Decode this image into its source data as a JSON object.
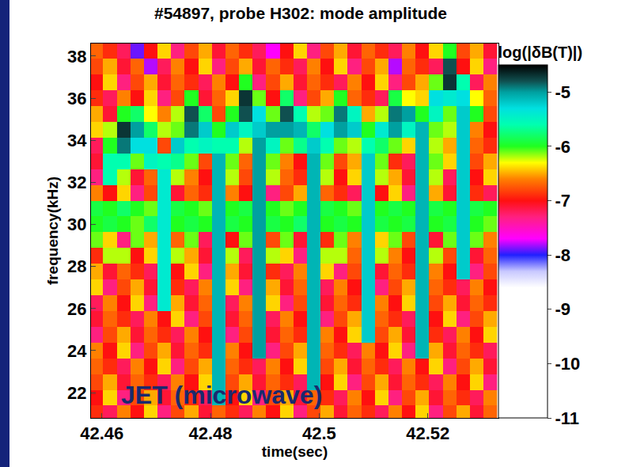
{
  "chart_data": {
    "type": "heatmap",
    "title": "#54897, probe H302: mode amplitude",
    "x_label": "time(sec)",
    "y_label": "frequency(kHz)",
    "colorbar_title": "log(|δB(T)|)",
    "annotations": [
      "JET (microwave)"
    ],
    "xlim": [
      42.458,
      42.533
    ],
    "xticks": [
      42.46,
      42.48,
      42.5,
      42.52
    ],
    "ylim": [
      20.8,
      38.6
    ],
    "yticks": [
      22,
      24,
      26,
      28,
      30,
      32,
      34,
      36,
      38
    ],
    "zlim": [
      -11,
      -4.5
    ],
    "zticks": [
      -5,
      -6,
      -7,
      -8,
      -9,
      -10,
      -11
    ],
    "x": [
      42.459,
      42.4615,
      42.464,
      42.4665,
      42.469,
      42.4715,
      42.474,
      42.4765,
      42.479,
      42.4815,
      42.484,
      42.4865,
      42.489,
      42.4915,
      42.494,
      42.4965,
      42.499,
      42.5015,
      42.504,
      42.5065,
      42.509,
      42.5115,
      42.514,
      42.5165,
      42.519,
      42.5215,
      42.524,
      42.5265,
      42.529,
      42.5315
    ],
    "y": [
      21,
      21.75,
      22.5,
      23.25,
      24,
      24.75,
      25.5,
      26.25,
      27,
      27.75,
      28.5,
      29.25,
      30,
      30.75,
      31.5,
      32.25,
      33,
      33.75,
      34.5,
      35.25,
      36,
      36.75,
      37.5,
      38.25
    ],
    "z": [
      [
        -6.9,
        -7.2,
        -6.6,
        -7.0,
        -6.4,
        -7.3,
        -6.8,
        -6.5,
        -7.1,
        -6.7,
        -6.9,
        -7.2,
        -6.6,
        -7.0,
        -6.4,
        -7.3,
        -6.8,
        -6.5,
        -7.1,
        -6.7,
        -6.9,
        -7.2,
        -6.6,
        -7.0,
        -6.4,
        -7.3,
        -6.8,
        -6.5,
        -7.1,
        -6.7
      ],
      [
        -7.0,
        -6.4,
        -7.3,
        -6.8,
        -6.5,
        -7.1,
        -6.7,
        -6.9,
        -7.2,
        -5.1,
        -7.0,
        -6.4,
        -7.3,
        -6.8,
        -6.5,
        -7.1,
        -6.7,
        -6.9,
        -7.2,
        -6.6,
        -7.0,
        -6.4,
        -7.3,
        -6.8,
        -6.5,
        -7.1,
        -6.7,
        -6.9,
        -7.2,
        -6.6
      ],
      [
        -6.8,
        -6.5,
        -7.1,
        -6.7,
        -6.9,
        -7.2,
        -6.6,
        -7.0,
        -6.4,
        -5.1,
        -6.8,
        -6.5,
        -7.1,
        -6.7,
        -6.9,
        -7.2,
        -5.1,
        -7.0,
        -6.4,
        -7.3,
        -6.8,
        -6.5,
        -7.1,
        -6.7,
        -6.9,
        -7.2,
        -6.6,
        -7.0,
        -6.4,
        -7.3
      ],
      [
        -6.7,
        -6.9,
        -7.2,
        -6.6,
        -7.0,
        -6.4,
        -7.3,
        -6.8,
        -6.5,
        -5.1,
        -6.7,
        -6.9,
        -7.2,
        -6.6,
        -7.0,
        -6.4,
        -5.1,
        -6.8,
        -6.5,
        -7.1,
        -6.7,
        -6.9,
        -7.2,
        -6.6,
        -7.0,
        -6.4,
        -7.3,
        -6.8,
        -6.5,
        -7.1
      ],
      [
        -6.6,
        -7.0,
        -6.4,
        -7.3,
        -6.8,
        -6.5,
        -7.1,
        -6.7,
        -6.9,
        -5.1,
        -6.6,
        -7.0,
        -5.0,
        -7.3,
        -6.8,
        -6.5,
        -5.1,
        -6.7,
        -6.9,
        -7.2,
        -6.6,
        -7.0,
        -6.4,
        -7.3,
        -5.1,
        -6.5,
        -7.1,
        -6.7,
        -6.9,
        -7.2
      ],
      [
        -7.3,
        -6.8,
        -6.5,
        -7.1,
        -6.7,
        -6.9,
        -7.2,
        -6.6,
        -7.0,
        -5.1,
        -7.3,
        -6.8,
        -5.0,
        -7.1,
        -6.7,
        -6.9,
        -5.1,
        -6.6,
        -7.0,
        -6.4,
        -5.2,
        -6.8,
        -6.5,
        -7.1,
        -5.1,
        -6.9,
        -7.2,
        -6.6,
        -7.0,
        -6.4
      ],
      [
        -7.1,
        -6.7,
        -6.9,
        -7.2,
        -6.6,
        -7.0,
        -6.4,
        -7.3,
        -6.8,
        -5.1,
        -7.1,
        -6.7,
        -5.0,
        -7.2,
        -6.6,
        -7.0,
        -5.1,
        -7.3,
        -6.8,
        -6.5,
        -5.2,
        -6.7,
        -6.9,
        -7.2,
        -5.1,
        -7.0,
        -6.4,
        -7.3,
        -6.8,
        -6.5
      ],
      [
        -7.2,
        -6.6,
        -7.0,
        -6.4,
        -7.3,
        -5.4,
        -6.5,
        -7.1,
        -6.7,
        -5.1,
        -7.2,
        -6.6,
        -5.0,
        -6.4,
        -7.3,
        -6.8,
        -5.1,
        -7.1,
        -6.7,
        -6.9,
        -5.2,
        -6.6,
        -7.0,
        -6.4,
        -5.1,
        -6.8,
        -6.5,
        -7.1,
        -6.7,
        -6.9
      ],
      [
        -6.4,
        -7.3,
        -6.8,
        -6.5,
        -7.1,
        -5.4,
        -6.9,
        -7.2,
        -6.6,
        -5.1,
        -6.4,
        -7.3,
        -5.0,
        -6.5,
        -7.1,
        -6.7,
        -5.1,
        -7.2,
        -6.6,
        -7.0,
        -5.2,
        -7.3,
        -6.8,
        -6.5,
        -5.1,
        -6.7,
        -6.9,
        -7.2,
        -6.6,
        -7.0
      ],
      [
        -6.5,
        -7.1,
        -6.7,
        -6.9,
        -7.2,
        -5.4,
        -7.0,
        -6.4,
        -7.3,
        -5.1,
        -6.5,
        -7.1,
        -5.0,
        -6.9,
        -7.2,
        -6.6,
        -5.1,
        -6.4,
        -7.3,
        -6.8,
        -5.2,
        -7.1,
        -6.7,
        -6.9,
        -5.1,
        -6.6,
        -7.0,
        -5.2,
        -7.3,
        -6.8
      ],
      [
        -6.9,
        -6.2,
        -6.2,
        -7.0,
        -6.4,
        -5.4,
        -6.2,
        -6.5,
        -7.1,
        -5.1,
        -6.2,
        -7.2,
        -5.0,
        -6.2,
        -6.4,
        -7.3,
        -5.1,
        -6.2,
        -6.2,
        -6.7,
        -5.2,
        -6.2,
        -6.6,
        -7.0,
        -5.1,
        -6.2,
        -6.8,
        -5.2,
        -7.1,
        -6.7
      ],
      [
        -6.1,
        -6.4,
        -7.3,
        -6.1,
        -6.5,
        -5.4,
        -6.7,
        -6.1,
        -7.2,
        -5.1,
        -7.0,
        -6.1,
        -5.0,
        -6.8,
        -6.1,
        -7.1,
        -5.1,
        -6.9,
        -6.1,
        -6.6,
        -5.2,
        -6.4,
        -6.1,
        -6.8,
        -5.1,
        -7.1,
        -6.1,
        -5.2,
        -6.1,
        -6.6
      ],
      [
        -6.0,
        -5.9,
        -6.0,
        -6.1,
        -5.8,
        -5.4,
        -6.0,
        -5.9,
        -6.0,
        -5.1,
        -5.9,
        -6.0,
        -5.0,
        -5.9,
        -6.0,
        -5.8,
        -5.1,
        -6.0,
        -5.9,
        -6.0,
        -5.2,
        -5.9,
        -6.0,
        -5.9,
        -5.1,
        -6.0,
        -5.9,
        -5.2,
        -6.0,
        -6.1
      ],
      [
        -5.9,
        -6.0,
        -5.8,
        -6.0,
        -6.1,
        -5.4,
        -5.9,
        -6.0,
        -6.1,
        -5.1,
        -6.0,
        -5.9,
        -5.0,
        -6.0,
        -6.1,
        -6.0,
        -5.1,
        -5.9,
        -6.0,
        -6.1,
        -5.2,
        -6.0,
        -5.9,
        -6.0,
        -5.1,
        -5.9,
        -6.0,
        -5.2,
        -5.9,
        -6.0
      ],
      [
        -6.6,
        -7.0,
        -6.4,
        -7.3,
        -6.8,
        -5.4,
        -7.1,
        -6.7,
        -6.9,
        -5.1,
        -6.6,
        -7.0,
        -5.0,
        -7.3,
        -6.8,
        -6.5,
        -5.1,
        -6.7,
        -6.9,
        -7.2,
        -5.2,
        -7.0,
        -6.4,
        -7.3,
        -5.1,
        -6.5,
        -7.1,
        -5.2,
        -6.9,
        -7.2
      ],
      [
        -7.3,
        -5.6,
        -6.2,
        -7.1,
        -6.7,
        -5.4,
        -6.2,
        -6.6,
        -7.0,
        -5.1,
        -6.2,
        -6.8,
        -5.0,
        -6.2,
        -6.7,
        -6.9,
        -5.1,
        -6.2,
        -7.0,
        -6.4,
        -5.2,
        -6.2,
        -6.5,
        -7.1,
        -5.1,
        -6.2,
        -7.2,
        -5.2,
        -7.0,
        -6.4
      ],
      [
        -7.1,
        -5.6,
        -5.6,
        -6.1,
        -5.5,
        -5.6,
        -5.7,
        -6.1,
        -6.8,
        -5.1,
        -6.1,
        -6.7,
        -5.0,
        -6.1,
        -6.6,
        -7.0,
        -5.1,
        -6.1,
        -6.8,
        -6.5,
        -5.2,
        -6.1,
        -6.9,
        -7.2,
        -5.1,
        -6.1,
        -6.4,
        -5.2,
        -6.8,
        -6.5
      ],
      [
        -7.2,
        -6.0,
        -4.9,
        -5.3,
        -5.3,
        -6.8,
        -5.2,
        -5.6,
        -5.5,
        -5.6,
        -5.6,
        -6.2,
        -5.0,
        -5.5,
        -6.1,
        -5.7,
        -5.2,
        -5.6,
        -6.1,
        -6.2,
        -5.6,
        -5.8,
        -6.1,
        -6.4,
        -5.1,
        -6.2,
        -6.5,
        -5.2,
        -6.7,
        -6.9
      ],
      [
        -6.4,
        -6.2,
        -4.7,
        -5.0,
        -5.8,
        -6.2,
        -6.1,
        -4.9,
        -5.2,
        -6.0,
        -5.2,
        -5.5,
        -5.2,
        -5.0,
        -5.0,
        -5.1,
        -5.8,
        -5.3,
        -5.0,
        -5.2,
        -6.0,
        -5.4,
        -5.0,
        -5.5,
        -5.1,
        -6.1,
        -6.2,
        -5.2,
        -6.6,
        -7.0
      ],
      [
        -6.5,
        -7.1,
        -6.0,
        -5.8,
        -6.3,
        -6.6,
        -6.2,
        -4.8,
        -5.8,
        -6.8,
        -6.0,
        -4.8,
        -5.3,
        -6.1,
        -4.8,
        -5.6,
        -6.2,
        -6.1,
        -4.9,
        -5.5,
        -6.5,
        -6.2,
        -4.9,
        -5.0,
        -6.0,
        -5.5,
        -6.1,
        -5.2,
        -6.0,
        -6.8
      ],
      [
        -6.9,
        -7.2,
        -6.6,
        -7.0,
        -6.4,
        -7.3,
        -6.8,
        -6.0,
        -7.1,
        -6.7,
        -6.4,
        -4.7,
        -6.1,
        -7.0,
        -5.8,
        -7.3,
        -6.8,
        -6.5,
        -6.0,
        -6.7,
        -6.9,
        -7.2,
        -5.9,
        -6.3,
        -6.4,
        -5.3,
        -5.4,
        -5.3,
        -6.3,
        -6.7
      ],
      [
        -7.0,
        -6.4,
        -7.3,
        -6.8,
        -6.5,
        -7.1,
        -6.7,
        -6.9,
        -7.2,
        -6.6,
        -7.0,
        -6.0,
        -7.3,
        -6.8,
        -6.5,
        -7.1,
        -6.7,
        -6.9,
        -7.2,
        -6.6,
        -7.0,
        -6.4,
        -7.3,
        -6.8,
        -6.5,
        -6.1,
        -4.7,
        -5.6,
        -7.2,
        -6.6
      ],
      [
        -6.8,
        -6.5,
        -7.1,
        -6.7,
        -7.8,
        -7.2,
        -6.6,
        -7.0,
        -6.4,
        -7.3,
        -6.8,
        -6.5,
        -7.1,
        -6.7,
        -6.9,
        -7.2,
        -6.6,
        -7.0,
        -6.4,
        -7.3,
        -6.8,
        -6.5,
        -7.8,
        -6.7,
        -6.9,
        -7.2,
        -4.8,
        -7.0,
        -6.4,
        -7.3
      ],
      [
        -6.7,
        -6.9,
        -7.2,
        -7.9,
        -7.0,
        -6.4,
        -7.3,
        -6.8,
        -6.5,
        -7.1,
        -6.7,
        -6.9,
        -7.2,
        -7.7,
        -7.0,
        -6.4,
        -7.3,
        -6.8,
        -6.5,
        -7.1,
        -6.7,
        -6.9,
        -7.2,
        -6.6,
        -7.0,
        -6.4,
        -6.0,
        -6.8,
        -6.5,
        -7.1
      ]
    ]
  }
}
